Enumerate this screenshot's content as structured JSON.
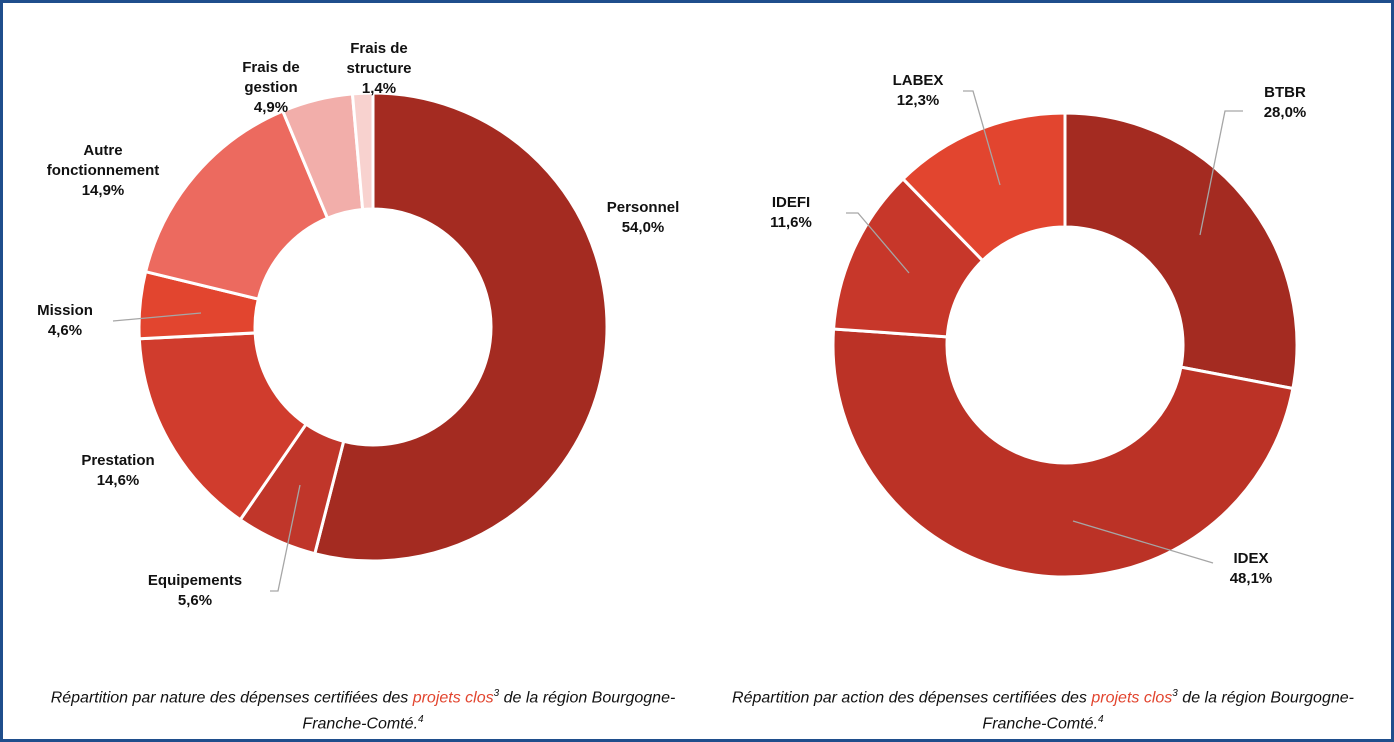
{
  "chart_data": [
    {
      "type": "donut",
      "categories": [
        "Personnel",
        "Equipements",
        "Prestation",
        "Mission",
        "Autre fonctionnement",
        "Frais de gestion",
        "Frais de structure"
      ],
      "values": [
        54.0,
        5.6,
        14.6,
        4.6,
        14.9,
        4.9,
        1.4
      ],
      "value_labels": [
        "54,0%",
        "5,6%",
        "14,6%",
        "4,6%",
        "14,9%",
        "4,9%",
        "1,4%"
      ],
      "colors": [
        "#a42b21",
        "#c0362a",
        "#d03c2d",
        "#e2452f",
        "#ec6a5f",
        "#f2aeaa",
        "#f8d2cf"
      ],
      "caption": {
        "before": "Répartition par nature des dépenses certifiées des ",
        "highlight": "projets clos",
        "sup1": "3",
        "after": " de la région Bourgogne-Franche-Comté.",
        "sup2": "4"
      }
    },
    {
      "type": "donut",
      "categories": [
        "BTBR",
        "IDEX",
        "IDEFI",
        "LABEX"
      ],
      "values": [
        28.0,
        48.1,
        11.6,
        12.3
      ],
      "value_labels": [
        "28,0%",
        "48,1%",
        "11,6%",
        "12,3%"
      ],
      "colors": [
        "#a42b21",
        "#bb3226",
        "#c7372a",
        "#e2452f"
      ],
      "caption": {
        "before": "Répartition par action des dépenses certifiées des ",
        "highlight": "projets clos",
        "sup1": "3",
        "after": " de la région Bourgogne-Franche-Comté.",
        "sup2": "4"
      }
    }
  ]
}
